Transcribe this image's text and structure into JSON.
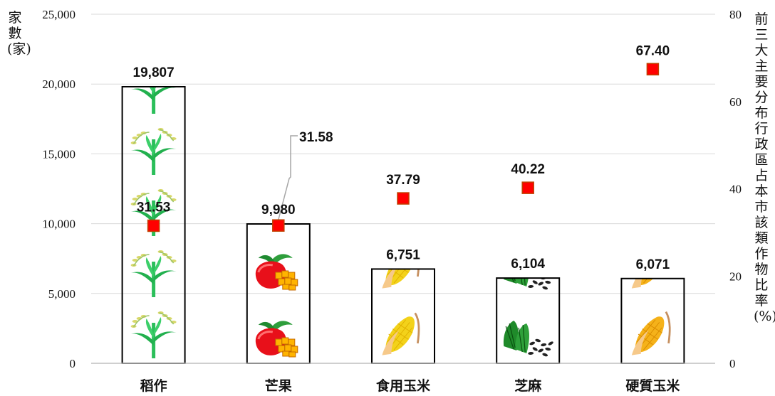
{
  "chart_data": {
    "type": "bar",
    "categories": [
      "稻作",
      "芒果",
      "食用玉米",
      "芝麻",
      "硬質玉米"
    ],
    "series": [
      {
        "values": [
          19807,
          9980,
          6751,
          6104,
          6071
        ],
        "value_labels": [
          "19,807",
          "9,980",
          "6,751",
          "6,104",
          "6,071"
        ],
        "axis": "left",
        "kind": "bar"
      },
      {
        "values": [
          31.53,
          31.58,
          37.79,
          40.22,
          67.4
        ],
        "value_labels": [
          "31.53",
          "31.58",
          "37.79",
          "40.22",
          "67.40"
        ],
        "axis": "right",
        "kind": "scatter",
        "marker": "square"
      }
    ],
    "ylabel": "家數(家)",
    "y2label": "前三大主要分布行政區占本市該類作物比率(%)",
    "ylim": [
      0,
      25000
    ],
    "y2lim": [
      0,
      80
    ],
    "yticks": [
      "0",
      "5,000",
      "10,000",
      "15,000",
      "20,000",
      "25,000"
    ],
    "y2ticks": [
      "0",
      "20",
      "40",
      "60",
      "80"
    ],
    "grid": true,
    "bar_icons": [
      "rice-plant-icon",
      "mango-icon",
      "corn-icon",
      "sesame-icon",
      "corn-icon"
    ],
    "colors": {
      "bar_border": "#000000",
      "marker_fill": "#ff0000",
      "marker_border": "#c04000",
      "grid": "#d9d9d9"
    }
  }
}
